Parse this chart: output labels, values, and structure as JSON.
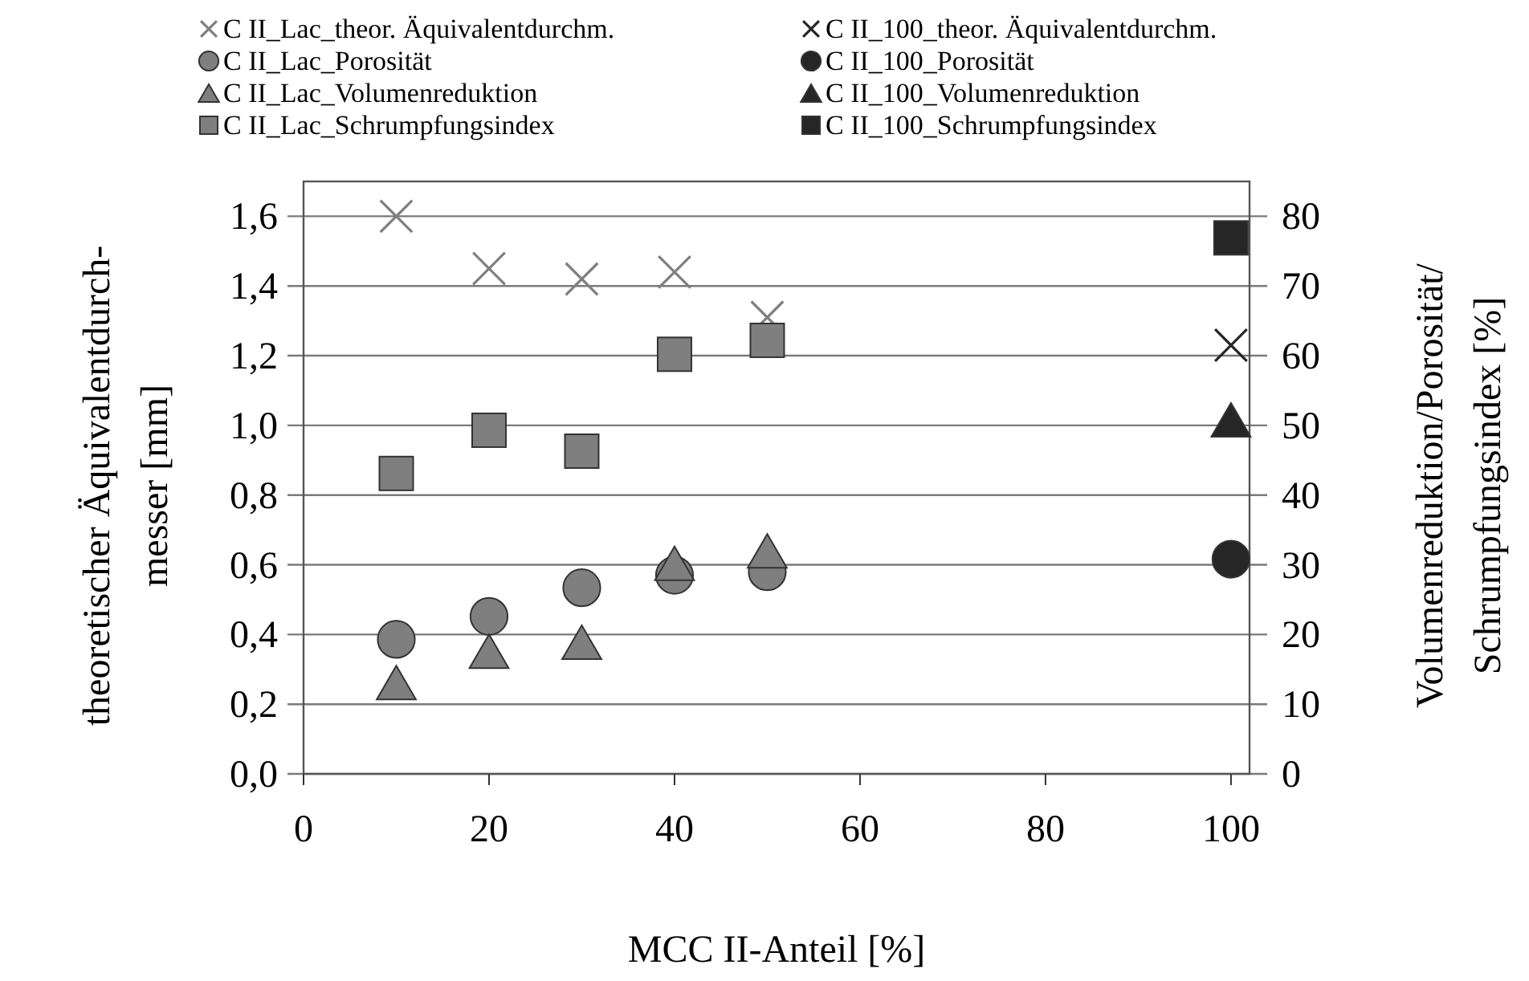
{
  "chart_data": {
    "type": "scatter",
    "xlabel": "MCC II-Anteil [%]",
    "ylabel": "theoretischer Äquivalentdurch-\nmesser [mm]",
    "y2label": "Volumenreduktion/Porosität/\nSchrumpfungsindex [%]",
    "xlim": [
      0,
      102
    ],
    "xticks": [
      0,
      20,
      40,
      60,
      80,
      100
    ],
    "ylim": [
      0,
      1.7
    ],
    "yticks": [
      {
        "value": 0,
        "label": "0,0"
      },
      {
        "value": 0.2,
        "label": "0,2"
      },
      {
        "value": 0.4,
        "label": "0,4"
      },
      {
        "value": 0.6,
        "label": "0,6"
      },
      {
        "value": 0.8,
        "label": "0,8"
      },
      {
        "value": 1,
        "label": "1,0"
      },
      {
        "value": 1.2,
        "label": "1,2"
      },
      {
        "value": 1.4,
        "label": "1,4"
      },
      {
        "value": 1.6,
        "label": "1,6"
      }
    ],
    "y2lim": [
      0,
      85
    ],
    "y2ticks": [
      0,
      10,
      20,
      30,
      40,
      50,
      60,
      70,
      80
    ],
    "grid": "y",
    "legend": "top",
    "series": [
      {
        "name": "C II_Lac_theor. Äquivalentdurchm.",
        "color": "#7f7f7f",
        "marker": "cross",
        "x": [
          10,
          20,
          30,
          40,
          50
        ],
        "values": [
          1.6,
          1.45,
          1.42,
          1.44,
          1.31
        ]
      },
      {
        "name": "C II_100_theor. Äquivalentdurchm.",
        "color": "#262626",
        "marker": "cross",
        "x": [
          100
        ],
        "values": [
          1.23
        ]
      },
      {
        "name": "C II_Lac_Porosität",
        "color": "#7f7f7f",
        "marker": "circle",
        "axis": "y2",
        "x": [
          10,
          20,
          30,
          40,
          50
        ],
        "values": [
          19.3,
          22.6,
          26.7,
          28.5,
          29
        ]
      },
      {
        "name": "C II_100_Porosität",
        "color": "#262626",
        "marker": "circle",
        "axis": "y2",
        "x": [
          100
        ],
        "values": [
          30.8
        ]
      },
      {
        "name": "C II_Lac_Volumenreduktion",
        "color": "#7f7f7f",
        "marker": "triangle",
        "axis": "y2",
        "x": [
          10,
          20,
          30,
          40,
          50
        ],
        "values": [
          13.1,
          17.6,
          18.9,
          30.2,
          32
        ]
      },
      {
        "name": "C II_100_Volumenreduktion",
        "color": "#262626",
        "marker": "triangle",
        "axis": "y2",
        "x": [
          100
        ],
        "values": [
          50.8
        ]
      },
      {
        "name": "C II_Lac_Schrumpfungsindex",
        "color": "#7f7f7f",
        "marker": "square",
        "axis": "y2",
        "x": [
          10,
          20,
          30,
          40,
          50
        ],
        "values": [
          43.1,
          49.3,
          46.3,
          60.2,
          62.2
        ]
      },
      {
        "name": "C II_100_Schrumpfungsindex",
        "color": "#262626",
        "marker": "square",
        "axis": "y2",
        "x": [
          100
        ],
        "values": [
          76.9
        ]
      }
    ]
  }
}
